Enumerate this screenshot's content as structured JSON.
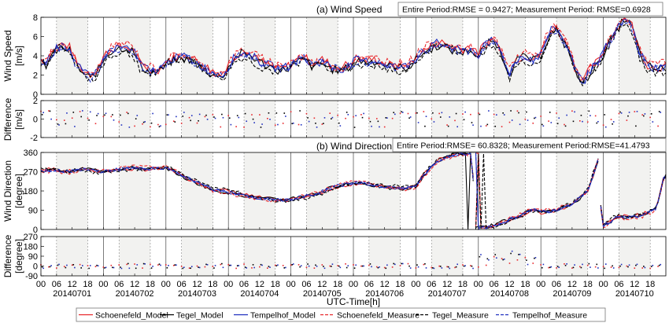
{
  "chart_data": {
    "type": "line",
    "days": [
      "20140701",
      "20140702",
      "20140703",
      "20140704",
      "20140705",
      "20140706",
      "20140707",
      "20140708",
      "20140709",
      "20140710"
    ],
    "hour_ticks": [
      "00",
      "06",
      "12",
      "18"
    ],
    "xlabel": "UTC-Time[h]",
    "colors": {
      "schoenefeld": "#e8262b",
      "tegel": "#000000",
      "tempelhof": "#1f2fbf",
      "shade": "#f2f2f0"
    },
    "panels": {
      "speed": {
        "title": "(a) Wind Speed",
        "rmse": "Entire Period:RMSE = 0.9427; Measurement Period: RMSE=0.6928",
        "ylabel": [
          "Wind Speed",
          "[m/s]"
        ],
        "ylim": [
          0,
          8
        ],
        "yticks": [
          "0",
          "2",
          "4",
          "6",
          "8"
        ]
      },
      "speed_diff": {
        "ylabel": [
          "Difference",
          "[m/s]"
        ],
        "ylim": [
          -2,
          2
        ],
        "yticks": [
          "-2",
          "0",
          "2"
        ]
      },
      "direction": {
        "title": "(b) Wind Direction",
        "rmse": "Entire Period:RMSE= 60.8328; Measurement Period:RMSE=41.4793",
        "ylabel": [
          "Wind Direction",
          "[degree]"
        ],
        "ylim": [
          0,
          360
        ],
        "yticks": [
          "0",
          "90",
          "180",
          "270",
          "360"
        ]
      },
      "direction_diff": {
        "ylabel": [
          "Difference",
          "[degree]"
        ],
        "ylim": [
          -90,
          270
        ],
        "yticks": [
          "-90",
          "0",
          "90",
          "180",
          "270"
        ]
      }
    },
    "legend": {
      "placement": "bottom",
      "entries": [
        {
          "label": "Schoenefeld_Model",
          "station": "schoenefeld",
          "dash": "solid"
        },
        {
          "label": "Tegel_Model",
          "station": "tegel",
          "dash": "solid"
        },
        {
          "label": "Tempelhof_Model",
          "station": "tempelhof",
          "dash": "solid"
        },
        {
          "label": "Schoenefeld_Measure",
          "station": "schoenefeld",
          "dash": "dashed"
        },
        {
          "label": "Tegel_Measure",
          "station": "tegel",
          "dash": "dashed"
        },
        {
          "label": "Tempelhof_Measure",
          "station": "tempelhof",
          "dash": "dashed"
        }
      ]
    },
    "speed_anchors": [
      [
        0,
        3.5
      ],
      [
        0.08,
        3.2
      ],
      [
        0.17,
        4.2
      ],
      [
        0.3,
        5.0
      ],
      [
        0.45,
        4.8
      ],
      [
        0.55,
        3.3
      ],
      [
        0.68,
        2.2
      ],
      [
        0.8,
        1.8
      ],
      [
        0.92,
        2.6
      ],
      [
        1.05,
        4.2
      ],
      [
        1.2,
        4.8
      ],
      [
        1.35,
        4.9
      ],
      [
        1.48,
        4.5
      ],
      [
        1.6,
        3.0
      ],
      [
        1.75,
        2.4
      ],
      [
        1.9,
        2.5
      ],
      [
        2.05,
        3.5
      ],
      [
        2.2,
        3.8
      ],
      [
        2.35,
        3.9
      ],
      [
        2.5,
        3.2
      ],
      [
        2.65,
        2.6
      ],
      [
        2.8,
        2.0
      ],
      [
        2.95,
        2.2
      ],
      [
        3.05,
        3.5
      ],
      [
        3.2,
        4.3
      ],
      [
        3.35,
        4.1
      ],
      [
        3.5,
        3.4
      ],
      [
        3.65,
        3.0
      ],
      [
        3.8,
        2.6
      ],
      [
        3.95,
        2.8
      ],
      [
        4.05,
        3.3
      ],
      [
        4.2,
        3.8
      ],
      [
        4.35,
        3.0
      ],
      [
        4.5,
        3.4
      ],
      [
        4.65,
        2.8
      ],
      [
        4.8,
        2.6
      ],
      [
        4.95,
        3.0
      ],
      [
        5.05,
        3.6
      ],
      [
        5.2,
        3.4
      ],
      [
        5.35,
        3.5
      ],
      [
        5.5,
        3.1
      ],
      [
        5.65,
        2.9
      ],
      [
        5.8,
        2.8
      ],
      [
        5.95,
        3.2
      ],
      [
        6.05,
        4.2
      ],
      [
        6.2,
        4.7
      ],
      [
        6.35,
        5.3
      ],
      [
        6.5,
        5.0
      ],
      [
        6.6,
        4.7
      ],
      [
        6.75,
        4.5
      ],
      [
        6.9,
        4.8
      ],
      [
        6.98,
        3.8
      ],
      [
        7.05,
        4.6
      ],
      [
        7.2,
        5.6
      ],
      [
        7.3,
        5.3
      ],
      [
        7.4,
        3.6
      ],
      [
        7.5,
        2.3
      ],
      [
        7.62,
        3.6
      ],
      [
        7.75,
        4.0
      ],
      [
        7.9,
        3.5
      ],
      [
        8.0,
        4.2
      ],
      [
        8.15,
        6.5
      ],
      [
        8.25,
        6.8
      ],
      [
        8.35,
        5.6
      ],
      [
        8.45,
        4.8
      ],
      [
        8.55,
        2.4
      ],
      [
        8.68,
        1.2
      ],
      [
        8.8,
        2.6
      ],
      [
        8.92,
        3.2
      ],
      [
        9.05,
        5.0
      ],
      [
        9.2,
        6.5
      ],
      [
        9.33,
        7.9
      ],
      [
        9.45,
        7.2
      ],
      [
        9.58,
        4.4
      ],
      [
        9.7,
        3.0
      ],
      [
        9.82,
        2.7
      ],
      [
        9.95,
        2.8
      ]
    ],
    "direction_anchors": [
      [
        0,
        275
      ],
      [
        0.2,
        280
      ],
      [
        0.45,
        270
      ],
      [
        0.7,
        283
      ],
      [
        0.95,
        272
      ],
      [
        1.2,
        280
      ],
      [
        1.5,
        287
      ],
      [
        1.75,
        283
      ],
      [
        1.98,
        288
      ],
      [
        2.1,
        280
      ],
      [
        2.25,
        250
      ],
      [
        2.45,
        225
      ],
      [
        2.62,
        205
      ],
      [
        2.75,
        185
      ],
      [
        2.95,
        178
      ],
      [
        3.1,
        170
      ],
      [
        3.4,
        150
      ],
      [
        3.7,
        140
      ],
      [
        3.95,
        138
      ],
      [
        4.1,
        150
      ],
      [
        4.4,
        165
      ],
      [
        4.7,
        200
      ],
      [
        4.95,
        215
      ],
      [
        5.1,
        220
      ],
      [
        5.35,
        205
      ],
      [
        5.6,
        195
      ],
      [
        5.85,
        190
      ],
      [
        6.0,
        205
      ],
      [
        6.15,
        260
      ],
      [
        6.3,
        310
      ],
      [
        6.45,
        335
      ],
      [
        6.6,
        350
      ],
      [
        6.75,
        355
      ],
      [
        6.9,
        356
      ],
      [
        6.95,
        2
      ],
      [
        7.2,
        15
      ],
      [
        7.45,
        40
      ],
      [
        7.7,
        70
      ],
      [
        7.9,
        95
      ],
      [
        8.0,
        80
      ],
      [
        8.25,
        90
      ],
      [
        8.5,
        120
      ],
      [
        8.75,
        180
      ],
      [
        8.93,
        340
      ],
      [
        8.97,
        10
      ],
      [
        9.2,
        55
      ],
      [
        9.45,
        60
      ],
      [
        9.65,
        70
      ],
      [
        9.85,
        100
      ],
      [
        9.97,
        250
      ]
    ]
  }
}
